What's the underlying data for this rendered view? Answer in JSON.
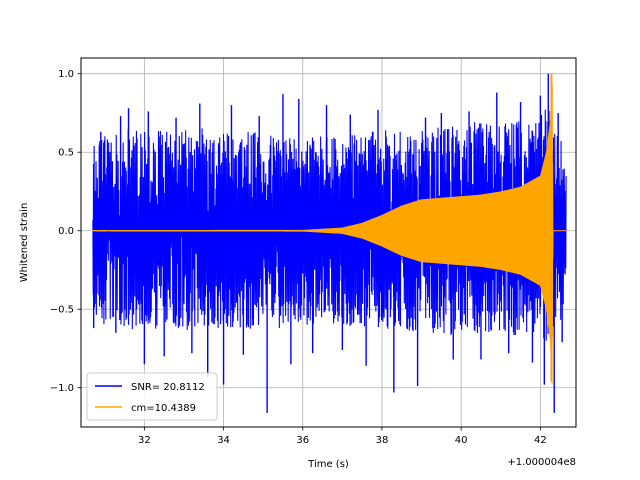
{
  "chart_data": {
    "type": "line",
    "xlabel": "Time (s)",
    "ylabel": "Whitened strain",
    "x_offset_label": "+1.000004e8",
    "xlim": [
      30.4,
      42.9
    ],
    "ylim": [
      -1.25,
      1.1
    ],
    "xticks": [
      32,
      34,
      36,
      38,
      40,
      42
    ],
    "yticks": [
      1.0,
      0.5,
      0.0,
      -0.5,
      -1.0
    ],
    "xtick_labels": [
      "32",
      "34",
      "36",
      "38",
      "40",
      "42"
    ],
    "ytick_labels": [
      "1.0",
      "0.5",
      "0.0",
      "−0.5",
      "−1.0"
    ],
    "grid": true,
    "legend_position": "lower-left",
    "series": [
      {
        "name": "SNR= 20.8112",
        "color": "#0000ff",
        "kind": "noise",
        "x_start": 30.7,
        "x_end": 42.65,
        "envelope_upper": [
          [
            30.7,
            0.55
          ],
          [
            31.0,
            0.62
          ],
          [
            31.5,
            0.66
          ],
          [
            32.0,
            0.63
          ],
          [
            32.5,
            0.64
          ],
          [
            33.0,
            0.64
          ],
          [
            33.5,
            0.66
          ],
          [
            34.0,
            0.62
          ],
          [
            34.5,
            0.64
          ],
          [
            35.0,
            0.62
          ],
          [
            35.5,
            0.62
          ],
          [
            36.0,
            0.6
          ],
          [
            36.5,
            0.62
          ],
          [
            37.0,
            0.6
          ],
          [
            37.5,
            0.62
          ],
          [
            38.0,
            0.65
          ],
          [
            38.5,
            0.66
          ],
          [
            39.0,
            0.64
          ],
          [
            39.5,
            0.66
          ],
          [
            40.0,
            0.68
          ],
          [
            40.5,
            0.7
          ],
          [
            41.0,
            0.72
          ],
          [
            41.5,
            0.7
          ],
          [
            42.0,
            0.72
          ],
          [
            42.2,
            0.85
          ],
          [
            42.3,
            0.65
          ],
          [
            42.65,
            0.55
          ]
        ],
        "envelope_lower": [
          [
            30.7,
            -0.55
          ],
          [
            31.0,
            -0.62
          ],
          [
            31.5,
            -0.64
          ],
          [
            32.0,
            -0.62
          ],
          [
            32.5,
            -0.63
          ],
          [
            33.0,
            -0.65
          ],
          [
            33.5,
            -0.64
          ],
          [
            34.0,
            -0.62
          ],
          [
            34.5,
            -0.64
          ],
          [
            35.0,
            -0.62
          ],
          [
            35.5,
            -0.62
          ],
          [
            36.0,
            -0.6
          ],
          [
            36.5,
            -0.6
          ],
          [
            37.0,
            -0.6
          ],
          [
            37.5,
            -0.62
          ],
          [
            38.0,
            -0.62
          ],
          [
            38.5,
            -0.64
          ],
          [
            39.0,
            -0.64
          ],
          [
            39.5,
            -0.66
          ],
          [
            40.0,
            -0.68
          ],
          [
            40.5,
            -0.66
          ],
          [
            41.0,
            -0.68
          ],
          [
            41.5,
            -0.66
          ],
          [
            42.0,
            -0.7
          ],
          [
            42.2,
            -0.8
          ],
          [
            42.3,
            -0.62
          ],
          [
            42.65,
            -0.55
          ]
        ],
        "peaks": [
          [
            30.72,
            0.18
          ],
          [
            30.72,
            -0.62
          ],
          [
            30.9,
            0.63
          ],
          [
            31.28,
            -0.65
          ],
          [
            31.4,
            0.73
          ],
          [
            31.6,
            0.78
          ],
          [
            32.0,
            -0.85
          ],
          [
            32.1,
            0.76
          ],
          [
            32.5,
            -0.8
          ],
          [
            32.8,
            0.72
          ],
          [
            33.2,
            -0.78
          ],
          [
            33.4,
            0.81
          ],
          [
            33.6,
            -0.93
          ],
          [
            34.0,
            -0.98
          ],
          [
            34.2,
            0.8
          ],
          [
            34.5,
            -0.79
          ],
          [
            34.9,
            0.73
          ],
          [
            35.1,
            -1.16
          ],
          [
            35.5,
            0.87
          ],
          [
            35.7,
            -0.85
          ],
          [
            35.9,
            0.84
          ],
          [
            36.25,
            -0.78
          ],
          [
            36.6,
            0.8
          ],
          [
            37.0,
            -0.76
          ],
          [
            37.2,
            0.74
          ],
          [
            37.6,
            -0.86
          ],
          [
            37.9,
            0.77
          ],
          [
            38.3,
            -1.03
          ],
          [
            38.9,
            -0.99
          ],
          [
            39.1,
            0.72
          ],
          [
            39.5,
            0.75
          ],
          [
            39.8,
            -0.82
          ],
          [
            40.2,
            0.76
          ],
          [
            40.5,
            -0.82
          ],
          [
            40.9,
            0.88
          ],
          [
            41.2,
            -0.78
          ],
          [
            41.5,
            0.82
          ],
          [
            41.8,
            -0.84
          ],
          [
            42.0,
            0.86
          ],
          [
            42.1,
            -0.98
          ],
          [
            42.2,
            1.0
          ],
          [
            42.35,
            -1.16
          ],
          [
            42.45,
            0.75
          ],
          [
            42.55,
            -0.71
          ],
          [
            42.6,
            0.3
          ]
        ]
      },
      {
        "name": "cm=10.4389",
        "color": "#ffa500",
        "kind": "chirp",
        "x_start": 30.7,
        "x_end": 42.65,
        "envelope": [
          [
            30.7,
            0.004
          ],
          [
            36.0,
            0.005
          ],
          [
            37.0,
            0.02
          ],
          [
            37.5,
            0.05
          ],
          [
            38.0,
            0.1
          ],
          [
            38.5,
            0.16
          ],
          [
            39.0,
            0.2
          ],
          [
            39.5,
            0.21
          ],
          [
            40.0,
            0.22
          ],
          [
            40.5,
            0.23
          ],
          [
            41.0,
            0.25
          ],
          [
            41.5,
            0.28
          ],
          [
            42.0,
            0.35
          ],
          [
            42.15,
            0.5
          ],
          [
            42.25,
            0.7
          ],
          [
            42.3,
            1.0
          ],
          [
            42.32,
            0.0
          ],
          [
            42.65,
            0.0
          ]
        ],
        "peak": {
          "x": 42.28,
          "y_max": 1.0,
          "y_min": -0.96
        }
      }
    ]
  }
}
